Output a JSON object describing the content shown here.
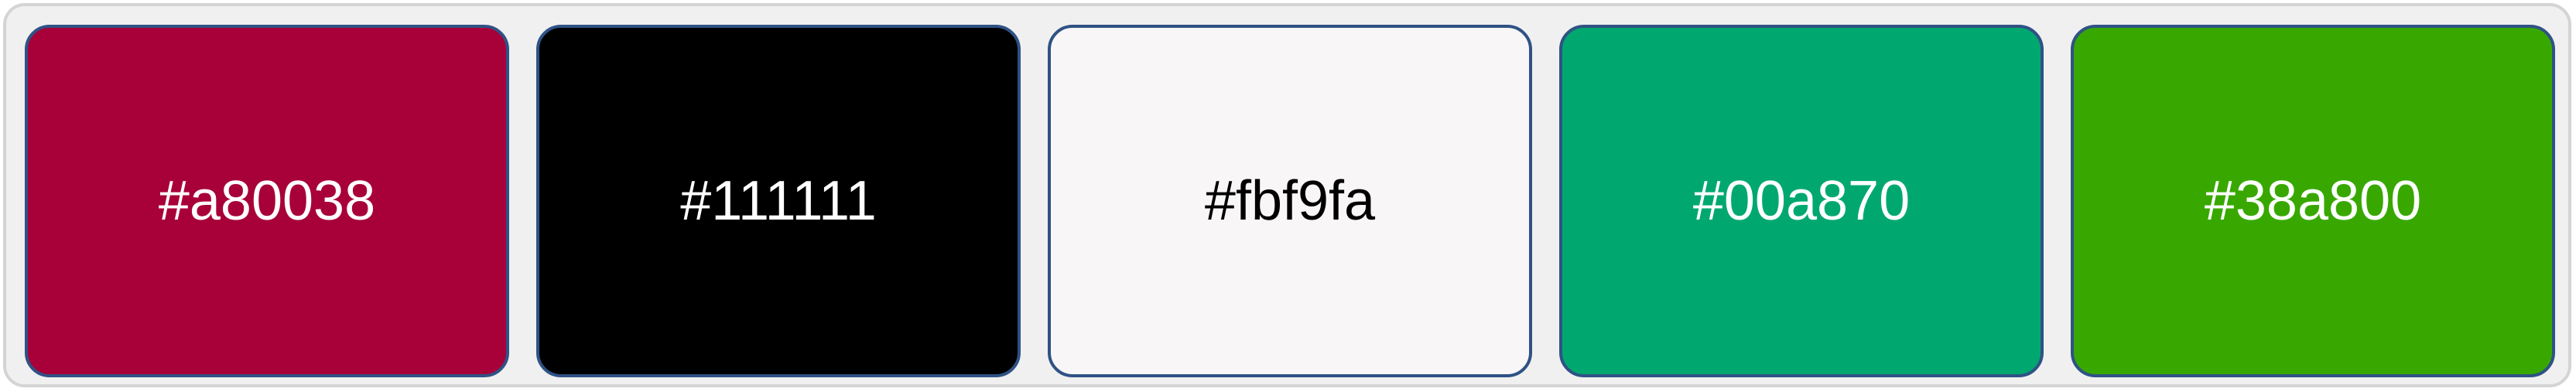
{
  "palette": {
    "swatches": [
      {
        "label": "#a80038",
        "color": "#a80038",
        "text_color": "#ffffff"
      },
      {
        "label": "#111111",
        "color": "#000000",
        "text_color": "#ffffff"
      },
      {
        "label": "#fbf9fa",
        "color": "#f8f6f7",
        "text_color": "#000000"
      },
      {
        "label": "#00a870",
        "color": "#00a870",
        "text_color": "#ffffff"
      },
      {
        "label": "#38a800",
        "color": "#38a800",
        "text_color": "#ffffff"
      }
    ]
  }
}
